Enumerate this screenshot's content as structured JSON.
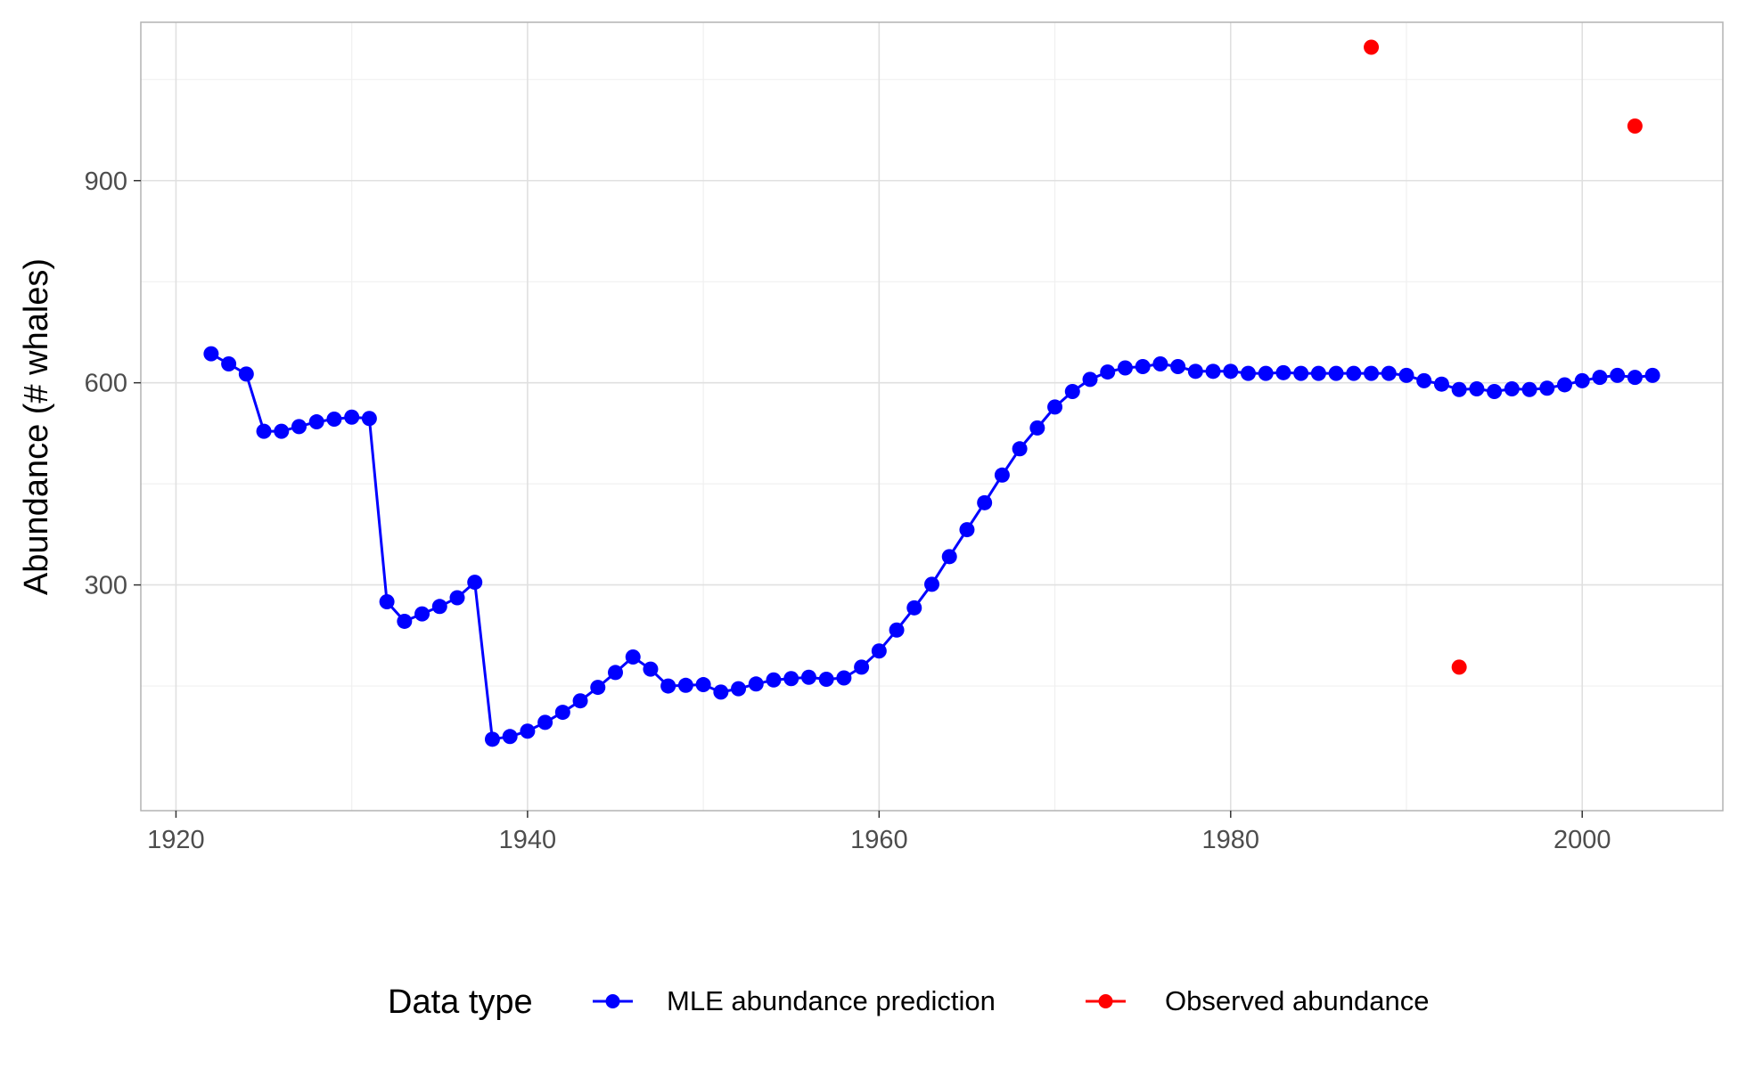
{
  "chart_data": {
    "type": "line",
    "title": "",
    "xlabel": "",
    "ylabel": "Abundance (# whales)",
    "xlim": [
      1918,
      2008
    ],
    "ylim": [
      -35,
      1135
    ],
    "x_ticks": [
      1920,
      1940,
      1960,
      1980,
      2000
    ],
    "x_tick_labels": [
      "1920",
      "1940",
      "1960",
      "1980",
      "2000"
    ],
    "y_ticks": [
      300,
      600,
      900
    ],
    "y_tick_labels": [
      "300",
      "600",
      "900"
    ],
    "grid": true,
    "legend": {
      "title": "Data type",
      "position": "bottom",
      "entries": [
        {
          "label": "MLE abundance prediction",
          "color": "#0000ff"
        },
        {
          "label": "Observed abundance",
          "color": "#ff0000"
        }
      ]
    },
    "series": [
      {
        "name": "MLE abundance prediction",
        "color": "#0000ff",
        "style": "line+points",
        "x": [
          1922,
          1923,
          1924,
          1925,
          1926,
          1927,
          1928,
          1929,
          1930,
          1931,
          1932,
          1933,
          1934,
          1935,
          1936,
          1937,
          1938,
          1939,
          1940,
          1941,
          1942,
          1943,
          1944,
          1945,
          1946,
          1947,
          1948,
          1949,
          1950,
          1951,
          1952,
          1953,
          1954,
          1955,
          1956,
          1957,
          1958,
          1959,
          1960,
          1961,
          1962,
          1963,
          1964,
          1965,
          1966,
          1967,
          1968,
          1969,
          1970,
          1971,
          1972,
          1973,
          1974,
          1975,
          1976,
          1977,
          1978,
          1979,
          1980,
          1981,
          1982,
          1983,
          1984,
          1985,
          1986,
          1987,
          1988,
          1989,
          1990,
          1991,
          1992,
          1993,
          1994,
          1995,
          1996,
          1997,
          1998,
          1999,
          2000,
          2001,
          2002,
          2003,
          2004
        ],
        "y": [
          643,
          628,
          613,
          528,
          528,
          535,
          542,
          546,
          549,
          547,
          275,
          246,
          257,
          268,
          281,
          304,
          71,
          75,
          83,
          96,
          111,
          128,
          148,
          170,
          193,
          175,
          150,
          151,
          152,
          141,
          146,
          153,
          159,
          161,
          163,
          160,
          162,
          178,
          202,
          233,
          266,
          301,
          342,
          382,
          422,
          463,
          502,
          533,
          564,
          587,
          605,
          616,
          622,
          624,
          628,
          624,
          617,
          617,
          617,
          614,
          614,
          615,
          614,
          614,
          614,
          614,
          614,
          614,
          611,
          603,
          598,
          590,
          591,
          587,
          591,
          590,
          592,
          597,
          603,
          608,
          611,
          608,
          611
        ]
      },
      {
        "name": "Observed abundance",
        "color": "#ff0000",
        "style": "points",
        "x": [
          1988,
          1993,
          2003
        ],
        "y": [
          1098,
          178,
          981
        ]
      }
    ]
  }
}
